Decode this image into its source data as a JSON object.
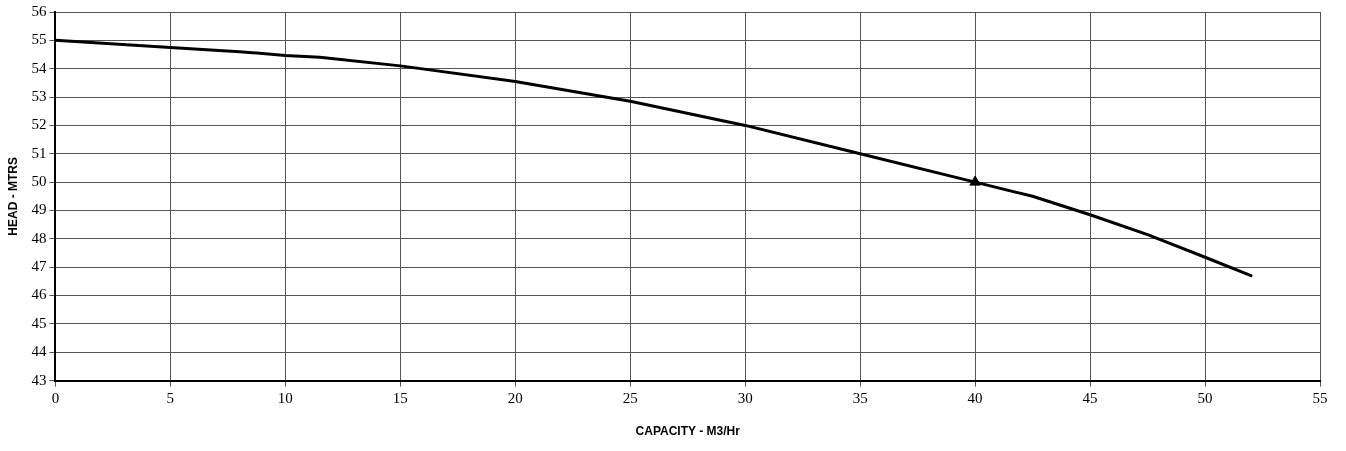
{
  "chart_data": {
    "type": "line",
    "xlabel": "CAPACITY - M3/Hr",
    "ylabel": "HEAD - MTRS",
    "xlim": [
      0,
      55
    ],
    "xticks": [
      0,
      5,
      10,
      15,
      20,
      25,
      30,
      35,
      40,
      45,
      50,
      55
    ],
    "ylim": [
      43,
      56
    ],
    "yticks": [
      43,
      44,
      45,
      46,
      47,
      48,
      49,
      50,
      51,
      52,
      53,
      54,
      55,
      56
    ],
    "grid": true,
    "legend": false,
    "series": [
      {
        "type": "line",
        "color": "#000000",
        "marker": "none",
        "x": [
          0,
          5,
          8,
          10,
          11.5,
          15,
          20,
          25,
          30,
          35,
          40,
          42.5,
          45,
          47.5,
          50,
          52
        ],
        "values": [
          55,
          54.75,
          54.6,
          54.47,
          54.4,
          54.1,
          53.55,
          52.85,
          52,
          51,
          50,
          49.5,
          48.85,
          48.15,
          47.35,
          46.7
        ]
      },
      {
        "type": "scatter",
        "color": "#000000",
        "marker": "triangle",
        "x": [
          40
        ],
        "values": [
          50
        ]
      }
    ]
  }
}
